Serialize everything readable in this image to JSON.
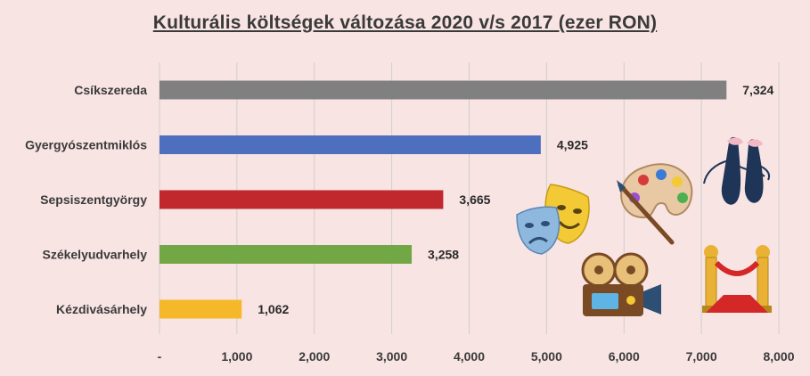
{
  "chart_data": {
    "type": "bar",
    "orientation": "horizontal",
    "title": "Kulturális költségek változása 2020 v/s 2017 (ezer RON)",
    "categories": [
      "Csíkszereda",
      "Gyergyószentmiklós",
      "Sepsiszentgyörgy",
      "Székelyudvarhely",
      "Kézdivásárhely"
    ],
    "values": [
      7324,
      4925,
      3665,
      3258,
      1062
    ],
    "value_labels": [
      "7,324",
      "4,925",
      "3,665",
      "3,258",
      "1,062"
    ],
    "colors": [
      "#808080",
      "#4e6fbd",
      "#c0282d",
      "#72a746",
      "#f5b82a"
    ],
    "xlim": [
      0,
      8000
    ],
    "x_ticks": [
      0,
      1000,
      2000,
      3000,
      4000,
      5000,
      6000,
      7000,
      8000
    ],
    "x_tick_labels": [
      "-",
      "1,000",
      "2,000",
      "3,000",
      "4,000",
      "5,000",
      "6,000",
      "7,000",
      "8,000"
    ],
    "grid": true,
    "legend": "none"
  },
  "decorations": [
    "theater-masks-icon",
    "paint-palette-icon",
    "ballet-shoes-icon",
    "film-projector-icon",
    "red-carpet-icon"
  ]
}
